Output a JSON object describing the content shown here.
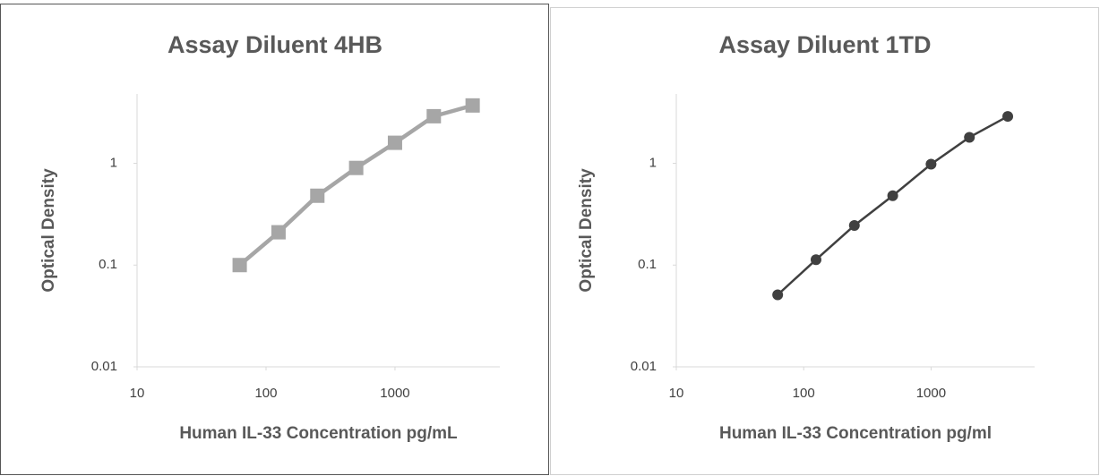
{
  "chart_data": [
    {
      "type": "line",
      "title": "Assay Diluent 4HB",
      "xlabel": "Human IL-33 Concentration pg/mL",
      "ylabel": "Optical Density",
      "log_x": true,
      "log_y": true,
      "marker": "square",
      "x": [
        62.5,
        125,
        250,
        500,
        1000,
        2000,
        4000
      ],
      "series": [
        {
          "name": null,
          "color": "#a6a6a6",
          "values": [
            0.1,
            0.21,
            0.48,
            0.9,
            1.59,
            2.9,
            3.7
          ]
        }
      ],
      "xlim": [
        10,
        6500
      ],
      "xticks": [
        10,
        100,
        1000
      ],
      "ylim": [
        0.01,
        4.8
      ],
      "yticks": [
        0.01,
        0.1,
        1
      ]
    },
    {
      "type": "line",
      "title": "Assay Diluent 1TD",
      "xlabel": "Human IL-33 Concentration pg/ml",
      "ylabel": "Optical Density",
      "log_x": true,
      "log_y": true,
      "marker": "circle",
      "x": [
        62.5,
        125,
        250,
        500,
        1000,
        2000,
        4000
      ],
      "series": [
        {
          "name": null,
          "color": "#404040",
          "values": [
            0.051,
            0.113,
            0.245,
            0.48,
            0.98,
            1.8,
            2.89
          ]
        }
      ],
      "xlim": [
        10,
        6500
      ],
      "xticks": [
        10,
        100,
        1000
      ],
      "ylim": [
        0.01,
        4.8
      ],
      "yticks": [
        0.01,
        0.1,
        1
      ]
    }
  ]
}
